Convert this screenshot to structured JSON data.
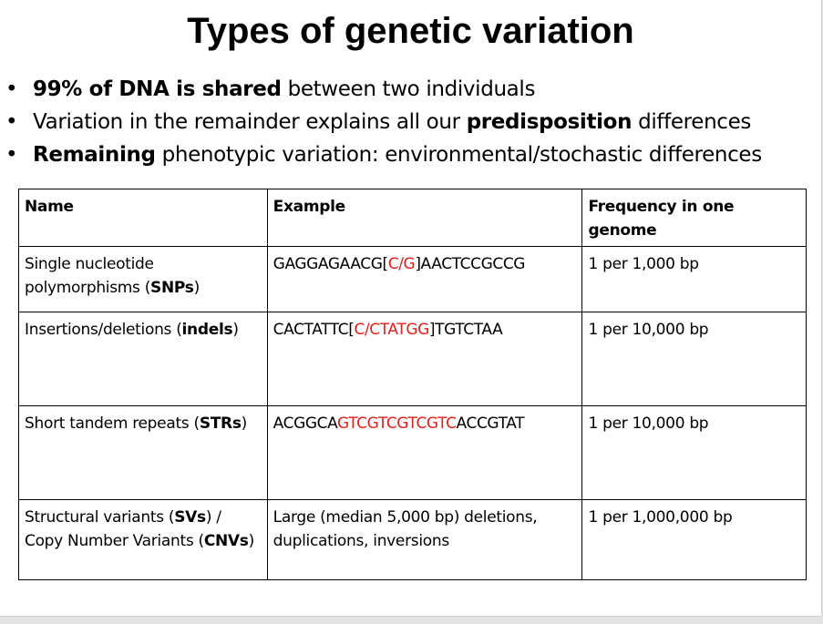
{
  "title": "Types of genetic variation",
  "bullets": [
    {
      "bold": "99% of DNA is shared",
      "rest": " between two individuals"
    },
    {
      "pre": "Variation in the remainder explains all our ",
      "bold": "predisposition",
      "post": " differences"
    },
    {
      "bold": "Remaining",
      "rest": " phenotypic variation: environmental/stochastic differences"
    }
  ],
  "bullet_glyph": "•",
  "table": {
    "headers": {
      "name": "Name",
      "example": "Example",
      "frequency": "Frequency in one genome"
    },
    "rows": [
      {
        "name_pre": "Single nucleotide polymorphisms (",
        "name_bold": "SNPs",
        "name_post": ")",
        "example_pre": "GAGGAGAACG[",
        "example_red": "C/G",
        "example_post": "]AACTCCGCCG",
        "frequency": "1 per 1,000 bp"
      },
      {
        "name_pre": "Insertions/deletions (",
        "name_bold": "indels",
        "name_post": ")",
        "example_pre": "CACTATTC[",
        "example_red": "C/CTATGG",
        "example_post": "]TGTCTAA",
        "frequency": "1 per 10,000 bp"
      },
      {
        "name_pre": "Short tandem repeats (",
        "name_bold": "STRs",
        "name_post": ")",
        "example_pre": "ACGGCA",
        "example_red": "GTCGTCGTCGTC",
        "example_post": "ACCGTAT",
        "frequency": "1 per 10,000 bp"
      },
      {
        "name_pre": "Structural variants (",
        "name_bold": "SVs",
        "name_mid": ") / Copy Number Variants (",
        "name_bold2": "CNVs",
        "name_post": ")",
        "example": "Large (median 5,000 bp) deletions, duplications, inversions",
        "frequency": "1 per 1,000,000 bp"
      }
    ]
  },
  "colors": {
    "highlight": "#e0201b",
    "text": "#000000",
    "background": "#ffffff"
  }
}
